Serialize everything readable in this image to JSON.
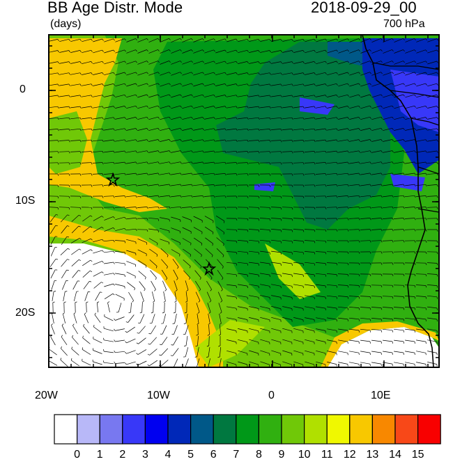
{
  "header": {
    "title": "BB Age Distr. Mode",
    "date": "2018-09-29_00",
    "units": "(days)",
    "level": "700 hPa"
  },
  "axes": {
    "y_ticks": [
      "0",
      "10S",
      "20S"
    ],
    "x_ticks": [
      "20W",
      "10W",
      "0",
      "10E"
    ]
  },
  "colorbar": {
    "labels": [
      "0",
      "1",
      "2",
      "3",
      "4",
      "5",
      "6",
      "7",
      "8",
      "9",
      "10",
      "11",
      "12",
      "13",
      "14",
      "15"
    ],
    "colors": [
      "#ffffff",
      "#b8b8f8",
      "#7878f0",
      "#3838f8",
      "#0000f0",
      "#0028b8",
      "#005888",
      "#007840",
      "#009818",
      "#30b010",
      "#70c808",
      "#b0e000",
      "#f0f800",
      "#f8c800",
      "#f88800",
      "#f84818",
      "#f80000"
    ]
  },
  "map_colors": {
    "light_green": "#70c808",
    "mid_green": "#30b010",
    "green": "#009818",
    "dark_green": "#007840",
    "teal": "#005888",
    "navy": "#0028b8",
    "blue": "#3838f8",
    "orange": "#f8c800",
    "white": "#ffffff"
  },
  "markers": [
    "star-marker-1",
    "star-marker-2"
  ]
}
